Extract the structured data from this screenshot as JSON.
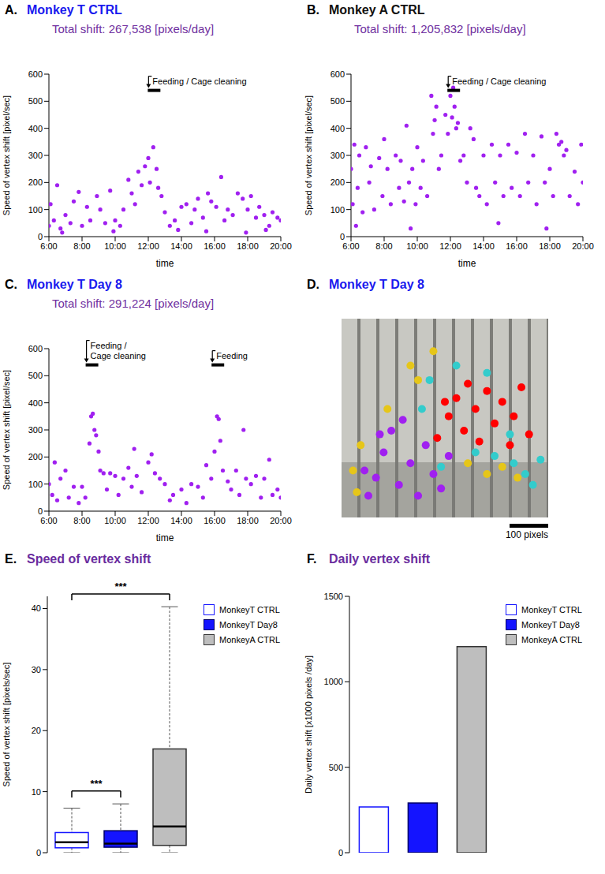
{
  "chart_data": [
    {
      "type": "scatter",
      "panel": "A.",
      "title": "Monkey T CTRL",
      "subtitle": "Total shift: 267,538 [pixels/day]",
      "x_label": "time",
      "y_label": "Speed of vertex shift [pixel/sec]",
      "xlim": [
        6,
        20
      ],
      "xticks": [
        {
          "value": 6,
          "label": "6:00"
        },
        {
          "value": 8,
          "label": "8:00"
        },
        {
          "value": 10,
          "label": "10:00"
        },
        {
          "value": 12,
          "label": "12:00"
        },
        {
          "value": 14,
          "label": "14:00"
        },
        {
          "value": 16,
          "label": "16:00"
        },
        {
          "value": 18,
          "label": "18:00"
        },
        {
          "value": 20,
          "label": "20:00"
        }
      ],
      "ylim": [
        0,
        600
      ],
      "yticks": [
        0,
        100,
        200,
        300,
        400,
        500,
        600
      ],
      "annotations": [
        {
          "x": 12.35,
          "text": "Feeding / Cage cleaning"
        }
      ],
      "series": [
        {
          "color": "#a020f0",
          "x": [
            6.0,
            6.1,
            6.3,
            6.5,
            6.7,
            6.8,
            7.0,
            7.3,
            7.5,
            7.8,
            8.0,
            8.3,
            8.5,
            8.9,
            9.1,
            9.4,
            9.7,
            9.9,
            10.0,
            10.3,
            10.5,
            10.8,
            11.0,
            11.2,
            11.4,
            11.6,
            11.8,
            12.0,
            12.1,
            12.3,
            12.5,
            12.6,
            12.8,
            13.0,
            13.3,
            13.6,
            13.8,
            14.0,
            14.3,
            14.6,
            14.8,
            15.0,
            15.3,
            15.5,
            15.6,
            15.8,
            16.1,
            16.4,
            16.6,
            16.8,
            17.1,
            17.4,
            17.7,
            17.9,
            18.0,
            18.2,
            18.5,
            18.7,
            19.0,
            19.1,
            19.3,
            19.5,
            19.8,
            20.0
          ],
          "values": [
            40,
            120,
            60,
            190,
            30,
            15,
            80,
            50,
            130,
            165,
            40,
            110,
            60,
            150,
            100,
            50,
            170,
            20,
            60,
            40,
            100,
            210,
            160,
            120,
            240,
            190,
            260,
            290,
            200,
            330,
            250,
            180,
            150,
            90,
            40,
            60,
            25,
            110,
            120,
            50,
            100,
            140,
            70,
            20,
            160,
            130,
            110,
            220,
            60,
            100,
            80,
            160,
            140,
            15,
            100,
            150,
            70,
            110,
            80,
            25,
            40,
            90,
            70,
            60
          ]
        }
      ]
    },
    {
      "type": "scatter",
      "panel": "B.",
      "title": "Monkey A CTRL",
      "subtitle": "Total shift: 1,205,832 [pixels/day]",
      "x_label": "time",
      "y_label": "Speed of vertex shift [pixel/sec]",
      "xlim": [
        6,
        20
      ],
      "xticks": [
        {
          "value": 6,
          "label": "6:00"
        },
        {
          "value": 8,
          "label": "8:00"
        },
        {
          "value": 10,
          "label": "10:00"
        },
        {
          "value": 12,
          "label": "12:00"
        },
        {
          "value": 14,
          "label": "14:00"
        },
        {
          "value": 16,
          "label": "16:00"
        },
        {
          "value": 18,
          "label": "18:00"
        },
        {
          "value": 20,
          "label": "20:00"
        }
      ],
      "ylim": [
        0,
        600
      ],
      "yticks": [
        0,
        100,
        200,
        300,
        400,
        500,
        600
      ],
      "annotations": [
        {
          "x": 12.2,
          "text": "Feeding / Cage cleaning"
        }
      ],
      "series": [
        {
          "color": "#a020f0",
          "x": [
            6.0,
            6.1,
            6.2,
            6.3,
            6.4,
            6.5,
            6.7,
            6.9,
            7.1,
            7.2,
            7.4,
            7.7,
            7.9,
            8.0,
            8.2,
            8.4,
            8.7,
            8.9,
            9.0,
            9.2,
            9.35,
            9.5,
            9.6,
            9.7,
            9.9,
            10.0,
            10.2,
            10.35,
            10.6,
            10.85,
            10.95,
            11.05,
            11.15,
            11.3,
            11.45,
            11.7,
            11.85,
            12.0,
            12.1,
            12.17,
            12.25,
            12.35,
            12.45,
            12.6,
            12.8,
            13.0,
            13.2,
            13.4,
            13.55,
            13.75,
            14.0,
            14.2,
            14.5,
            14.7,
            14.9,
            15.0,
            15.2,
            15.5,
            15.7,
            16.0,
            16.2,
            16.5,
            16.7,
            17.0,
            17.2,
            17.5,
            17.7,
            17.8,
            18.0,
            18.2,
            18.4,
            18.55,
            18.7,
            18.85,
            19.0,
            19.2,
            19.5,
            19.7,
            19.9,
            20.0
          ],
          "values": [
            250,
            120,
            340,
            40,
            180,
            300,
            90,
            330,
            200,
            260,
            100,
            290,
            150,
            360,
            250,
            120,
            300,
            180,
            280,
            130,
            410,
            200,
            30,
            250,
            120,
            330,
            180,
            280,
            150,
            520,
            380,
            430,
            480,
            250,
            300,
            450,
            380,
            520,
            440,
            550,
            480,
            400,
            420,
            280,
            300,
            200,
            400,
            360,
            180,
            150,
            300,
            120,
            340,
            200,
            50,
            300,
            150,
            340,
            180,
            310,
            150,
            380,
            200,
            300,
            120,
            370,
            200,
            30,
            250,
            150,
            380,
            340,
            350,
            300,
            320,
            150,
            240,
            120,
            340,
            200
          ]
        }
      ]
    },
    {
      "type": "scatter",
      "panel": "C.",
      "title": "Monkey T Day 8",
      "subtitle": "Total shift: 291,224 [pixels/day]",
      "x_label": "time",
      "y_label": "Speed of vertex shift [pixel/sec]",
      "xlim": [
        6,
        20
      ],
      "xticks": [
        {
          "value": 6,
          "label": "6:00"
        },
        {
          "value": 8,
          "label": "8:00"
        },
        {
          "value": 10,
          "label": "10:00"
        },
        {
          "value": 12,
          "label": "12:00"
        },
        {
          "value": 14,
          "label": "14:00"
        },
        {
          "value": 16,
          "label": "16:00"
        },
        {
          "value": 18,
          "label": "18:00"
        },
        {
          "value": 20,
          "label": "20:00"
        }
      ],
      "ylim": [
        0,
        600
      ],
      "yticks": [
        0,
        100,
        200,
        300,
        400,
        500,
        600
      ],
      "annotations": [
        {
          "x": 8.6,
          "text": "Feeding / Cage cleaning"
        },
        {
          "x": 16.2,
          "text": "Feeding"
        }
      ],
      "series": [
        {
          "color": "#a020f0",
          "x": [
            6.0,
            6.2,
            6.35,
            6.5,
            6.7,
            7.0,
            7.2,
            7.5,
            7.8,
            8.0,
            8.2,
            8.45,
            8.55,
            8.65,
            8.75,
            8.85,
            9.0,
            9.1,
            9.3,
            9.5,
            9.7,
            10.0,
            10.2,
            10.5,
            10.8,
            11.0,
            11.15,
            11.3,
            11.6,
            12.0,
            12.2,
            12.4,
            12.7,
            13.0,
            13.3,
            13.5,
            14.0,
            14.3,
            14.6,
            15.0,
            15.3,
            15.5,
            15.8,
            16.0,
            16.15,
            16.25,
            16.35,
            16.5,
            16.8,
            17.0,
            17.3,
            17.5,
            17.75,
            17.9,
            18.2,
            18.5,
            18.8,
            19.0,
            19.3,
            19.5,
            19.8,
            20.0
          ],
          "values": [
            100,
            60,
            180,
            40,
            120,
            150,
            50,
            90,
            30,
            90,
            50,
            250,
            350,
            360,
            300,
            280,
            220,
            150,
            140,
            80,
            140,
            130,
            60,
            120,
            160,
            90,
            230,
            130,
            70,
            180,
            210,
            140,
            120,
            100,
            40,
            60,
            80,
            30,
            100,
            90,
            50,
            170,
            120,
            220,
            350,
            340,
            260,
            150,
            110,
            80,
            150,
            60,
            300,
            120,
            100,
            130,
            50,
            120,
            190,
            60,
            80,
            50
          ]
        }
      ]
    },
    {
      "type": "scatter",
      "panel": "D.",
      "title": "Monkey T Day 8",
      "tick_labels": false,
      "xlim": [
        0,
        540
      ],
      "ylim": [
        0,
        550
      ],
      "scale_bar": {
        "value": 100,
        "label": "100 pixels"
      },
      "series": [
        {
          "color": "#a020f0",
          "x": [
            70,
            90,
            110,
            130,
            150,
            180,
            200,
            220,
            240,
            260,
            280,
            100,
            160,
            60
          ],
          "values": [
            60,
            110,
            180,
            240,
            90,
            150,
            60,
            200,
            120,
            80,
            170,
            230,
            270,
            130
          ]
        },
        {
          "color": "#ff0000",
          "x": [
            250,
            280,
            300,
            320,
            350,
            380,
            400,
            420,
            450,
            470,
            490,
            330,
            360,
            440,
            270
          ],
          "values": [
            220,
            280,
            330,
            240,
            300,
            350,
            260,
            320,
            280,
            360,
            230,
            370,
            210,
            200,
            320
          ]
        },
        {
          "color": "#33cccc",
          "x": [
            230,
            300,
            350,
            400,
            450,
            480,
            500,
            520,
            260,
            380,
            440,
            210
          ],
          "values": [
            380,
            420,
            180,
            170,
            150,
            120,
            90,
            160,
            140,
            400,
            230,
            300
          ]
        },
        {
          "color": "#e6c619",
          "x": [
            30,
            50,
            40,
            180,
            200,
            240,
            330,
            420,
            460,
            120,
            380
          ],
          "values": [
            130,
            200,
            70,
            420,
            380,
            460,
            150,
            140,
            110,
            300,
            120
          ]
        }
      ]
    },
    {
      "type": "box",
      "panel": "E.",
      "title": "Speed of vertex shift",
      "y_label": "Speed of vertex shift [pixels/sec]",
      "categories": [
        "MonkeyT CTRL",
        "MonkeyT Day8",
        "MonkeyA CTRL"
      ],
      "colors": [
        "#ffffff",
        "#1414ff",
        "#bebebe"
      ],
      "whisker_low": [
        0,
        0,
        0
      ],
      "q1": [
        0.8,
        0.9,
        1.2
      ],
      "median": [
        1.7,
        1.5,
        4.3
      ],
      "q3": [
        3.3,
        3.6,
        17.0
      ],
      "whisker_high": [
        7.3,
        8.0,
        40.3
      ],
      "ylim": [
        0,
        42
      ],
      "yticks": [
        0,
        10,
        20,
        30,
        40
      ],
      "tick_labels": "y",
      "legend": "right",
      "significance": [
        {
          "from": "MonkeyT CTRL",
          "to": "MonkeyA CTRL",
          "label": "***"
        },
        {
          "from": "MonkeyT CTRL",
          "to": "MonkeyT Day8",
          "label": "***"
        }
      ]
    },
    {
      "type": "bar",
      "panel": "F.",
      "title": "Daily vertex shift",
      "y_label": "Daily vertex shift [x1000 pixels /day]",
      "categories": [
        "MonkeyT CTRL",
        "MonkeyT Day8",
        "MonkeyA CTRL"
      ],
      "values": [
        267.538,
        291.224,
        1205.832
      ],
      "colors": [
        "#ffffff",
        "#1414ff",
        "#bebebe"
      ],
      "ylim": [
        0,
        1500
      ],
      "yticks": [
        0,
        500,
        1000,
        1500
      ],
      "tick_labels": "y",
      "legend": "right"
    }
  ]
}
